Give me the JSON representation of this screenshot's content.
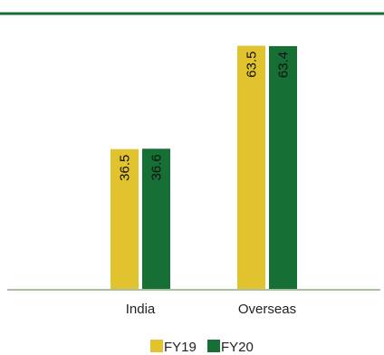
{
  "chart_data": {
    "type": "bar",
    "categories": [
      "India",
      "Overseas"
    ],
    "series": [
      {
        "name": "FY19",
        "values": [
          36.5,
          63.5
        ],
        "color": "#e1c22f"
      },
      {
        "name": "FY20",
        "values": [
          36.6,
          63.4
        ],
        "color": "#166f35"
      }
    ],
    "ylim": [
      0,
      70
    ],
    "legend_position": "bottom",
    "grid": false,
    "data_labels": "inside-bar-vertical"
  },
  "colors": {
    "top_rule": "#166f35",
    "baseline": "#a9bfa0"
  }
}
